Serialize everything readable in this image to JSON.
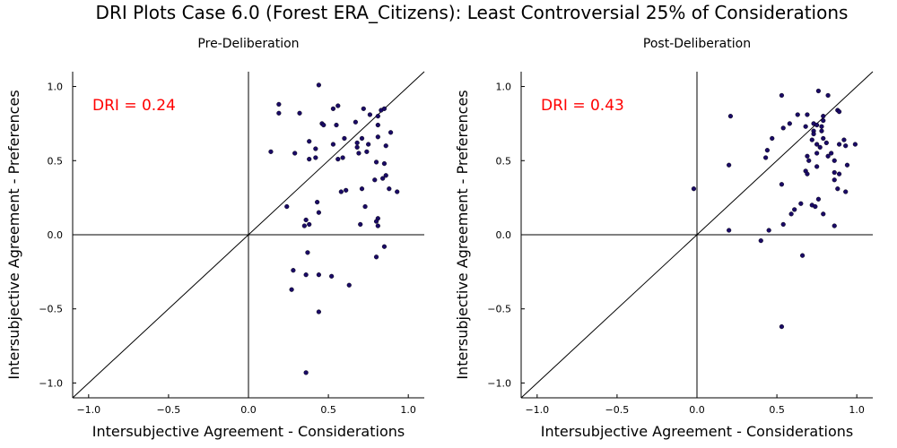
{
  "title": "DRI Plots Case 6.0 (Forest ERA_Citizens): Least Controversial 25% of Considerations",
  "chart_data": [
    {
      "type": "scatter",
      "title": "Pre-Deliberation",
      "xlabel": "Intersubjective Agreement - Considerations",
      "ylabel": "Intersubjective Agreement - Preferences",
      "xlim": [
        -1.1,
        1.1
      ],
      "ylim": [
        -1.1,
        1.1
      ],
      "xticks": [
        "−1.0",
        "−0.5",
        "0.0",
        "0.5",
        "1.0"
      ],
      "yticks": [
        "−1.0",
        "−0.5",
        "0.0",
        "0.5",
        "1.0"
      ],
      "annotation": "DRI = 0.24",
      "marker_color": "#1a0a66",
      "grid": false,
      "points": [
        [
          0.44,
          1.01
        ],
        [
          0.19,
          0.88
        ],
        [
          0.19,
          0.82
        ],
        [
          0.32,
          0.82
        ],
        [
          0.53,
          0.85
        ],
        [
          0.56,
          0.87
        ],
        [
          0.72,
          0.85
        ],
        [
          0.76,
          0.81
        ],
        [
          0.83,
          0.84
        ],
        [
          0.85,
          0.85
        ],
        [
          0.81,
          0.8
        ],
        [
          0.46,
          0.75
        ],
        [
          0.47,
          0.74
        ],
        [
          0.55,
          0.74
        ],
        [
          0.67,
          0.76
        ],
        [
          0.81,
          0.74
        ],
        [
          0.81,
          0.66
        ],
        [
          0.89,
          0.69
        ],
        [
          0.38,
          0.63
        ],
        [
          0.53,
          0.61
        ],
        [
          0.6,
          0.65
        ],
        [
          0.68,
          0.62
        ],
        [
          0.71,
          0.65
        ],
        [
          0.68,
          0.59
        ],
        [
          0.69,
          0.55
        ],
        [
          0.74,
          0.56
        ],
        [
          0.75,
          0.61
        ],
        [
          0.86,
          0.6
        ],
        [
          0.14,
          0.56
        ],
        [
          0.29,
          0.55
        ],
        [
          0.42,
          0.58
        ],
        [
          0.38,
          0.51
        ],
        [
          0.42,
          0.52
        ],
        [
          0.56,
          0.51
        ],
        [
          0.59,
          0.52
        ],
        [
          0.8,
          0.49
        ],
        [
          0.85,
          0.48
        ],
        [
          0.86,
          0.4
        ],
        [
          0.79,
          0.37
        ],
        [
          0.84,
          0.38
        ],
        [
          0.88,
          0.31
        ],
        [
          0.93,
          0.29
        ],
        [
          0.58,
          0.29
        ],
        [
          0.61,
          0.3
        ],
        [
          0.71,
          0.31
        ],
        [
          0.43,
          0.22
        ],
        [
          0.24,
          0.19
        ],
        [
          0.73,
          0.19
        ],
        [
          0.44,
          0.15
        ],
        [
          0.36,
          0.1
        ],
        [
          0.81,
          0.11
        ],
        [
          0.8,
          0.09
        ],
        [
          0.35,
          0.06
        ],
        [
          0.38,
          0.07
        ],
        [
          0.7,
          0.07
        ],
        [
          0.81,
          0.06
        ],
        [
          0.37,
          -0.12
        ],
        [
          0.85,
          -0.08
        ],
        [
          0.8,
          -0.15
        ],
        [
          0.28,
          -0.24
        ],
        [
          0.36,
          -0.27
        ],
        [
          0.44,
          -0.27
        ],
        [
          0.52,
          -0.28
        ],
        [
          0.63,
          -0.34
        ],
        [
          0.27,
          -0.37
        ],
        [
          0.44,
          -0.52
        ],
        [
          0.36,
          -0.93
        ]
      ]
    },
    {
      "type": "scatter",
      "title": "Post-Deliberation",
      "xlabel": "Intersubjective Agreement - Considerations",
      "ylabel": "Intersubjective Agreement - Preferences",
      "xlim": [
        -1.1,
        1.1
      ],
      "ylim": [
        -1.1,
        1.1
      ],
      "xticks": [
        "−1.0",
        "−0.5",
        "0.0",
        "0.5",
        "1.0"
      ],
      "yticks": [
        "−1.0",
        "−0.5",
        "0.0",
        "0.5",
        "1.0"
      ],
      "annotation": "DRI = 0.43",
      "marker_color": "#1a0a66",
      "grid": false,
      "points": [
        [
          0.76,
          0.97
        ],
        [
          0.53,
          0.94
        ],
        [
          0.82,
          0.94
        ],
        [
          0.88,
          0.84
        ],
        [
          0.89,
          0.83
        ],
        [
          0.21,
          0.8
        ],
        [
          0.63,
          0.81
        ],
        [
          0.69,
          0.81
        ],
        [
          0.79,
          0.8
        ],
        [
          0.79,
          0.77
        ],
        [
          0.58,
          0.75
        ],
        [
          0.73,
          0.75
        ],
        [
          0.54,
          0.72
        ],
        [
          0.68,
          0.73
        ],
        [
          0.75,
          0.74
        ],
        [
          0.78,
          0.73
        ],
        [
          0.73,
          0.7
        ],
        [
          0.73,
          0.68
        ],
        [
          0.78,
          0.7
        ],
        [
          0.47,
          0.65
        ],
        [
          0.72,
          0.64
        ],
        [
          0.79,
          0.65
        ],
        [
          0.81,
          0.62
        ],
        [
          0.92,
          0.64
        ],
        [
          0.89,
          0.61
        ],
        [
          0.93,
          0.6
        ],
        [
          0.99,
          0.61
        ],
        [
          0.75,
          0.61
        ],
        [
          0.77,
          0.59
        ],
        [
          0.44,
          0.57
        ],
        [
          0.75,
          0.55
        ],
        [
          0.84,
          0.55
        ],
        [
          0.82,
          0.53
        ],
        [
          0.69,
          0.53
        ],
        [
          0.43,
          0.52
        ],
        [
          0.7,
          0.5
        ],
        [
          0.86,
          0.5
        ],
        [
          0.2,
          0.47
        ],
        [
          0.75,
          0.46
        ],
        [
          0.94,
          0.47
        ],
        [
          0.68,
          0.43
        ],
        [
          0.69,
          0.41
        ],
        [
          0.86,
          0.42
        ],
        [
          0.89,
          0.41
        ],
        [
          0.86,
          0.37
        ],
        [
          0.53,
          0.34
        ],
        [
          0.88,
          0.31
        ],
        [
          0.93,
          0.29
        ],
        [
          -0.02,
          0.31
        ],
        [
          0.76,
          0.24
        ],
        [
          0.65,
          0.21
        ],
        [
          0.72,
          0.2
        ],
        [
          0.74,
          0.19
        ],
        [
          0.61,
          0.17
        ],
        [
          0.59,
          0.14
        ],
        [
          0.79,
          0.14
        ],
        [
          0.54,
          0.07
        ],
        [
          0.86,
          0.06
        ],
        [
          0.45,
          0.03
        ],
        [
          0.2,
          0.03
        ],
        [
          0.4,
          -0.04
        ],
        [
          0.66,
          -0.14
        ],
        [
          0.53,
          -0.62
        ]
      ]
    }
  ]
}
